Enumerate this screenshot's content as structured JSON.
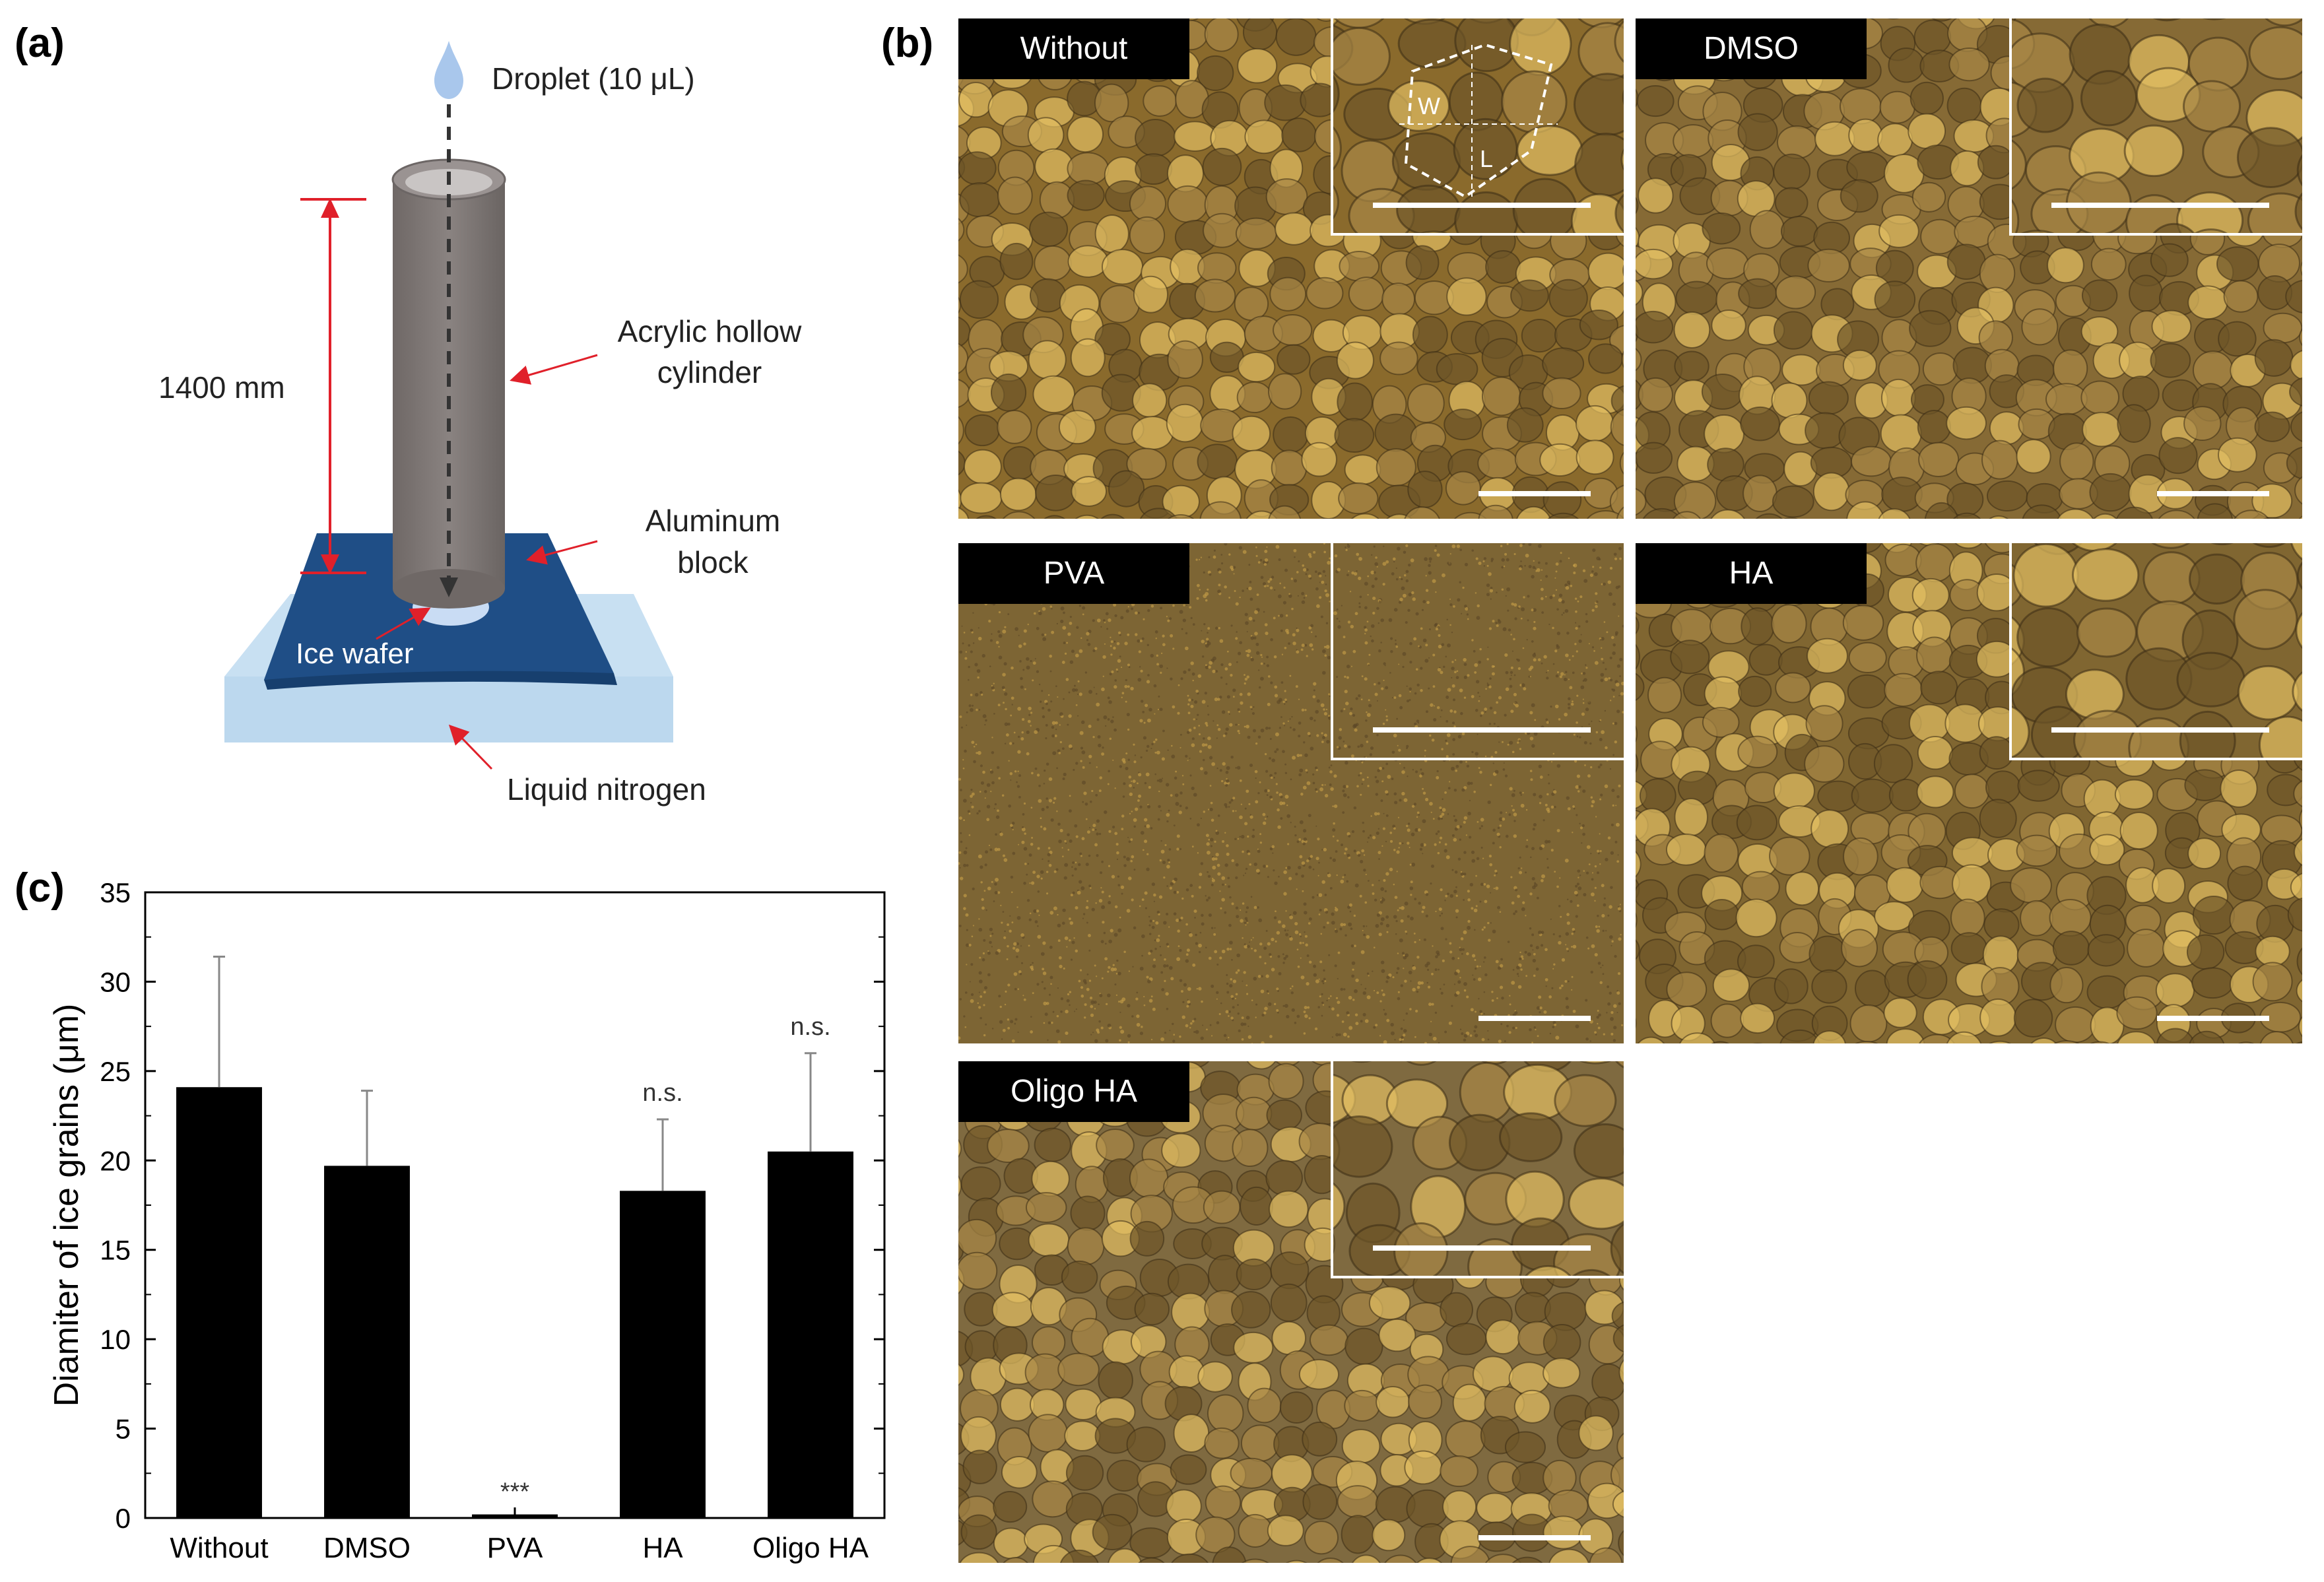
{
  "panels": {
    "a": "(a)",
    "b": "(b)",
    "c": "(c)"
  },
  "diagram": {
    "droplet": "Droplet (10 μL)",
    "height": "1400 mm",
    "cylinder_line1": "Acrylic hollow",
    "cylinder_line2": "cylinder",
    "block_line1": "Aluminum",
    "block_line2": "block",
    "ice_wafer": "Ice wafer",
    "liquid_nitrogen": "Liquid nitrogen"
  },
  "micrographs": [
    {
      "label": "Without",
      "tone": "#8a6a2c",
      "inset_letters": [
        "W",
        "L"
      ]
    },
    {
      "label": "DMSO",
      "tone": "#866a35"
    },
    {
      "label": "PVA",
      "tone": "#7d6534"
    },
    {
      "label": "HA",
      "tone": "#806631"
    },
    {
      "label": "Oligo HA",
      "tone": "#7f6a40"
    }
  ],
  "chart_data": {
    "type": "bar",
    "categories": [
      "Without",
      "DMSO",
      "PVA",
      "HA",
      "Oligo HA"
    ],
    "values": [
      24.1,
      19.7,
      0.2,
      18.3,
      20.5
    ],
    "error_upper": [
      31.4,
      23.9,
      null,
      22.3,
      26.0
    ],
    "annotations": [
      "",
      "",
      "***",
      "n.s.",
      "n.s."
    ],
    "ylabel": "Diamiter of ice grains (μm)",
    "xlabel": "",
    "ylim": [
      0,
      35
    ],
    "yticks": [
      0,
      5,
      10,
      15,
      20,
      25,
      30,
      35
    ],
    "bar_color": "#000000"
  }
}
